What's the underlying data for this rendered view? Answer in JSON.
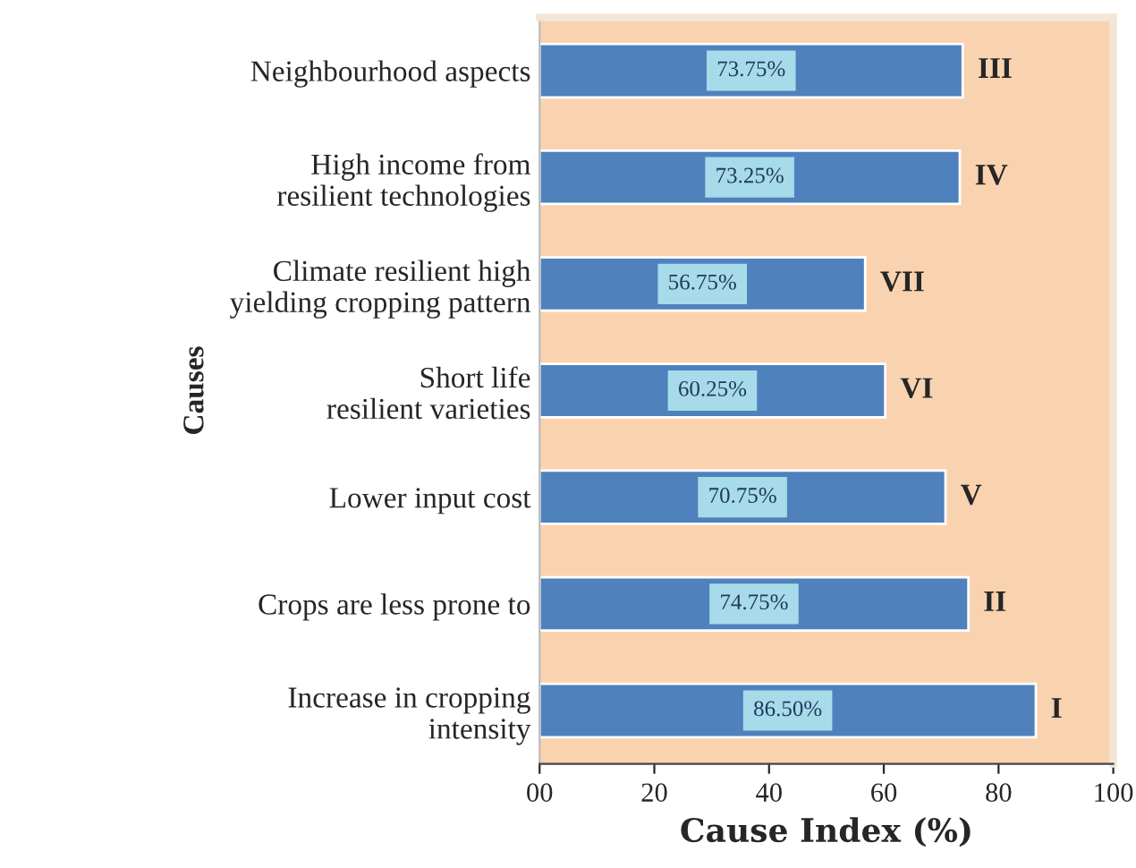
{
  "chart_data": {
    "type": "bar",
    "orientation": "horizontal",
    "xlabel": "Cause Index (%)",
    "ylabel": "Causes",
    "categories": [
      "Neighbourhood aspects",
      "High income from\nresilient technologies",
      "Climate resilient high\nyielding cropping pattern",
      "Short life\nresilient varieties",
      "Lower input cost",
      "Crops are less prone to",
      "Increase in cropping\nintensity"
    ],
    "values": [
      73.75,
      73.25,
      56.75,
      60.25,
      70.75,
      74.75,
      86.5
    ],
    "value_labels": [
      "73.75%",
      "73.25%",
      "56.75%",
      "60.25%",
      "70.75%",
      "74.75%",
      "86.50%"
    ],
    "color": "#4f81bd",
    "xlim": [
      0,
      100
    ],
    "xticks": [
      {
        "value": 0,
        "label": "00"
      },
      20,
      40,
      60,
      80,
      100
    ],
    "grid": false,
    "annotations": [
      {
        "text": "III",
        "x": 73.75,
        "y": "Neighbourhood aspects"
      },
      {
        "text": "IV",
        "x": 73.25,
        "y": "High income from\nresilient technologies"
      },
      {
        "text": "VII",
        "x": 56.75,
        "y": "Climate resilient high\nyielding cropping pattern"
      },
      {
        "text": "VI",
        "x": 60.25,
        "y": "Short life\nresilient varieties"
      },
      {
        "text": "V",
        "x": 70.75,
        "y": "Lower input cost"
      },
      {
        "text": "II",
        "x": 74.75,
        "y": "Crops are less prone to"
      },
      {
        "text": "I",
        "x": 86.5,
        "y": "Increase in cropping\nintensity"
      }
    ]
  }
}
